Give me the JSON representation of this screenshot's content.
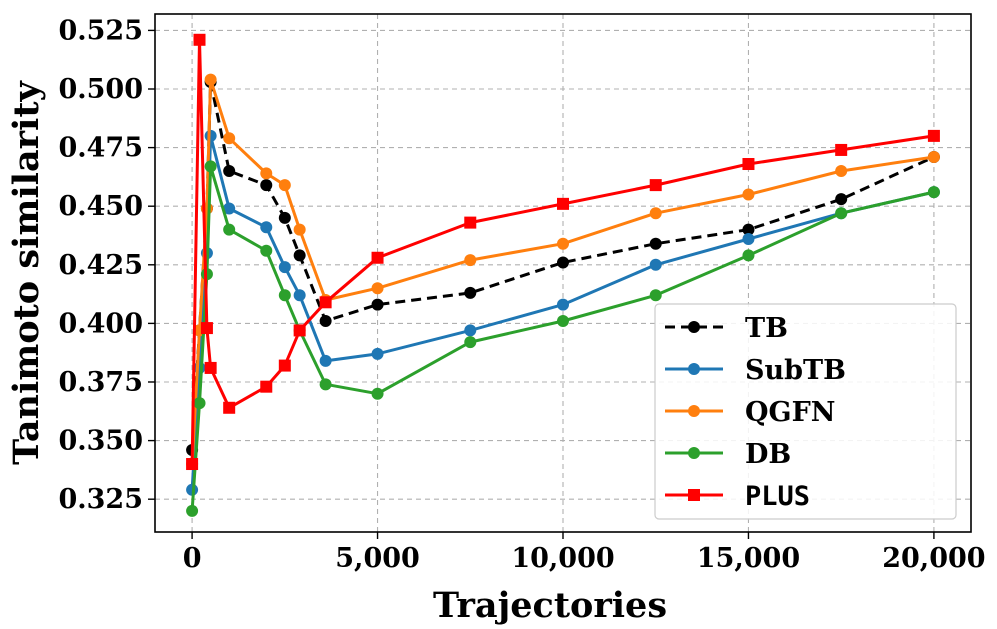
{
  "chart_data": {
    "type": "line",
    "title": "",
    "xlabel": "Trajectories",
    "ylabel": "Tanimoto similarity",
    "xlim": [
      -1000,
      21000
    ],
    "ylim": [
      0.311,
      0.532
    ],
    "x_ticks": [
      0,
      5000,
      10000,
      15000,
      20000
    ],
    "x_tick_labels": [
      "0",
      "5,000",
      "10,000",
      "15,000",
      "20,000"
    ],
    "y_ticks": [
      0.325,
      0.35,
      0.375,
      0.4,
      0.425,
      0.45,
      0.475,
      0.5,
      0.525
    ],
    "y_tick_labels": [
      "0.325",
      "0.350",
      "0.375",
      "0.400",
      "0.425",
      "0.450",
      "0.475",
      "0.500",
      "0.525"
    ],
    "grid": true,
    "legend_position": "lower-right",
    "series": [
      {
        "name": "TB",
        "color": "#000000",
        "dashed": true,
        "marker": "circle",
        "x": [
          0,
          200,
          400,
          500,
          1000,
          2000,
          2500,
          2900,
          3600,
          5000,
          7500,
          10000,
          12500,
          15000,
          17500,
          20000
        ],
        "y": [
          0.346,
          0.397,
          0.449,
          0.503,
          0.465,
          0.459,
          0.445,
          0.429,
          0.401,
          0.408,
          0.413,
          0.426,
          0.434,
          0.44,
          0.453,
          0.471
        ]
      },
      {
        "name": "SubTB",
        "color": "#1f77b4",
        "dashed": false,
        "marker": "circle",
        "x": [
          0,
          200,
          400,
          500,
          1000,
          2000,
          2500,
          2900,
          3600,
          5000,
          7500,
          10000,
          12500,
          15000,
          17500,
          20000
        ],
        "y": [
          0.329,
          0.381,
          0.43,
          0.48,
          0.449,
          0.441,
          0.424,
          0.412,
          0.384,
          0.387,
          0.397,
          0.408,
          0.425,
          0.436,
          0.447,
          0.456
        ]
      },
      {
        "name": "QGFN",
        "color": "#ff7f0e",
        "dashed": false,
        "marker": "circle",
        "x": [
          0,
          200,
          400,
          500,
          1000,
          2000,
          2500,
          2900,
          3600,
          5000,
          7500,
          10000,
          12500,
          15000,
          17500,
          20000
        ],
        "y": [
          0.34,
          0.397,
          0.449,
          0.504,
          0.479,
          0.464,
          0.459,
          0.44,
          0.41,
          0.415,
          0.427,
          0.434,
          0.447,
          0.455,
          0.465,
          0.471
        ]
      },
      {
        "name": "DB",
        "color": "#2ca02c",
        "dashed": false,
        "marker": "circle",
        "x": [
          0,
          200,
          400,
          500,
          1000,
          2000,
          2500,
          2900,
          3600,
          5000,
          7500,
          10000,
          12500,
          15000,
          17500,
          20000
        ],
        "y": [
          0.32,
          0.366,
          0.421,
          0.467,
          0.44,
          0.431,
          0.412,
          0.397,
          0.374,
          0.37,
          0.392,
          0.401,
          0.412,
          0.429,
          0.447,
          0.456
        ]
      },
      {
        "name": "PLUS",
        "color": "#ff0000",
        "dashed": false,
        "marker": "square",
        "x": [
          0,
          200,
          400,
          500,
          1000,
          2000,
          2500,
          2900,
          3600,
          5000,
          7500,
          10000,
          12500,
          15000,
          17500,
          20000
        ],
        "y": [
          0.34,
          0.521,
          0.398,
          0.381,
          0.364,
          0.373,
          0.382,
          0.397,
          0.409,
          0.428,
          0.443,
          0.451,
          0.459,
          0.468,
          0.474,
          0.48
        ]
      }
    ]
  }
}
